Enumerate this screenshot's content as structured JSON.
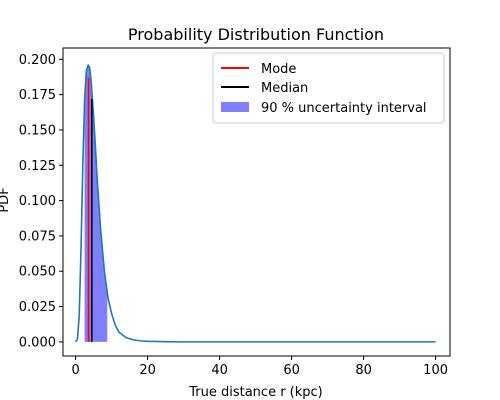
{
  "chart_data": {
    "type": "line",
    "title": "Probability Distribution Function",
    "xlabel": "True distance r (kpc)",
    "ylabel": "PDF",
    "xlim": [
      -3.5,
      104
    ],
    "ylim": [
      -0.01,
      0.208
    ],
    "xticks": [
      0,
      20,
      40,
      60,
      80,
      100
    ],
    "xtick_labels": [
      "0",
      "20",
      "40",
      "60",
      "80",
      "100"
    ],
    "yticks": [
      0.0,
      0.025,
      0.05,
      0.075,
      0.1,
      0.125,
      0.15,
      0.175,
      0.2
    ],
    "ytick_labels": [
      "0.000",
      "0.025",
      "0.050",
      "0.075",
      "0.100",
      "0.125",
      "0.150",
      "0.175",
      "0.200"
    ],
    "grid": false,
    "legend_position": "top-right",
    "legend": [
      {
        "label": "Mode",
        "color": "#ff0000",
        "kind": "line"
      },
      {
        "label": "Median",
        "color": "#000000",
        "kind": "line"
      },
      {
        "label": "90 % uncertainty interval",
        "color": "#8080ff",
        "kind": "patch"
      }
    ],
    "series": [
      {
        "color": "#1f77b4",
        "x": [
          0,
          0.5,
          1,
          1.5,
          2,
          2.5,
          3,
          3.5,
          3.9,
          4.3,
          5,
          5.5,
          6,
          7,
          8,
          9,
          10,
          11,
          12,
          14,
          16,
          18,
          20,
          25,
          30,
          40,
          60,
          80,
          100
        ],
        "y": [
          0.0,
          0.002,
          0.018,
          0.065,
          0.125,
          0.172,
          0.192,
          0.196,
          0.194,
          0.185,
          0.16,
          0.138,
          0.115,
          0.078,
          0.05,
          0.031,
          0.02,
          0.012,
          0.007,
          0.003,
          0.0015,
          0.0007,
          0.0004,
          0.0001,
          0.0,
          0.0,
          0.0,
          0.0,
          0.0
        ]
      }
    ],
    "mode": {
      "x": 3.6,
      "y": 0.187,
      "color": "#ff0000"
    },
    "median": {
      "x": 4.5,
      "y": 0.172,
      "color": "#000000"
    },
    "interval": {
      "x_low": 2.5,
      "x_high": 8.8,
      "color": "#8080ff"
    }
  }
}
